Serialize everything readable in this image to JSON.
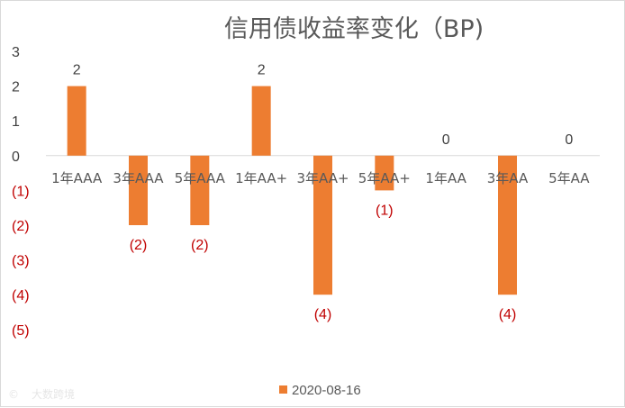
{
  "chart_data": {
    "type": "bar",
    "title": "信用债收益率变化（BP)",
    "categories": [
      "1年AAA",
      "3年AAA",
      "5年AAA",
      "1年AA+",
      "3年AA+",
      "5年AA+",
      "1年AA",
      "3年AA",
      "5年AA"
    ],
    "series": [
      {
        "name": "2020-08-16",
        "values": [
          2,
          -2,
          -2,
          2,
          -4,
          -1,
          0,
          -4,
          0
        ]
      }
    ],
    "data_labels": [
      "2",
      "(2)",
      "(2)",
      "2",
      "(4)",
      "(1)",
      "0",
      "(4)",
      "0"
    ],
    "ytick_labels": [
      "3",
      "2",
      "1",
      "0",
      "(1)",
      "(2)",
      "(3)",
      "(4)",
      "(5)"
    ],
    "ylim": [
      -5,
      3
    ],
    "xlabel": "",
    "ylabel": "",
    "grid": false,
    "legend_position": "bottom",
    "colors": {
      "bar": "#ed7d31",
      "positive_text": "#404040",
      "negative_text": "#c00000",
      "axis": "#d9d9d9"
    }
  },
  "watermark": "大数跨境"
}
